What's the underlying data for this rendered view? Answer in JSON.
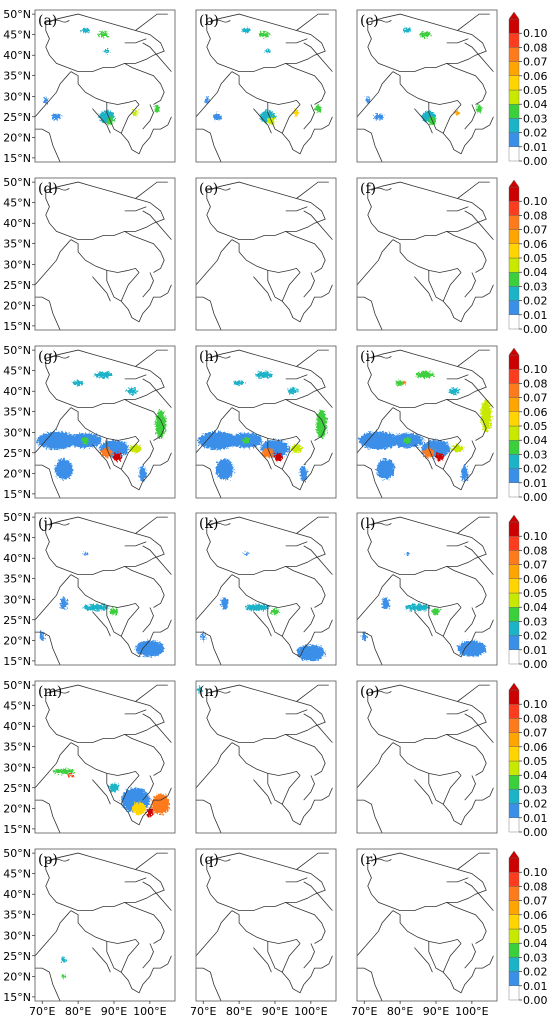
{
  "chart_data": {
    "type": "heatmap",
    "rows": 6,
    "cols": 3,
    "panel_labels": [
      "(a)",
      "(b)",
      "(c)",
      "(d)",
      "(e)",
      "(f)",
      "(g)",
      "(h)",
      "(i)",
      "(j)",
      "(k)",
      "(l)",
      "(m)",
      "(n)",
      "(o)",
      "(p)",
      "(q)",
      "(r)"
    ],
    "y_tick_labels": [
      "50°N",
      "45°N",
      "40°N",
      "35°N",
      "30°N",
      "25°N",
      "20°N",
      "15°N"
    ],
    "y_tick_values": [
      50,
      45,
      40,
      35,
      30,
      25,
      20,
      15
    ],
    "x_tick_labels": [
      "70°E",
      "80°E",
      "90°E",
      "100°E"
    ],
    "x_tick_values": [
      70,
      80,
      90,
      100
    ],
    "xlim": [
      68,
      107
    ],
    "ylim": [
      14,
      51
    ],
    "colorbar": {
      "levels": [
        0.0,
        0.01,
        0.02,
        0.03,
        0.04,
        0.05,
        0.06,
        0.07,
        0.08,
        0.09,
        0.1
      ],
      "tick_labels": [
        "0.00",
        "0.01",
        "0.02",
        "0.03",
        "0.04",
        "0.05",
        "0.06",
        "0.07",
        "0.08",
        "0.10"
      ],
      "tick_values": [
        0.0,
        0.01,
        0.02,
        0.03,
        0.04,
        0.05,
        0.06,
        0.07,
        0.08,
        0.1
      ],
      "colors": [
        "#ffffff",
        "#3a8fe8",
        "#1bb3c8",
        "#3ccf3c",
        "#c8e800",
        "#ffd400",
        "#ffa500",
        "#ff7a1a",
        "#ff3c1e",
        "#cc0000"
      ],
      "extend": "max"
    },
    "panels": [
      {
        "id": "a",
        "blobs": [
          [
            82,
            46,
            1.2,
            0.6,
            0.02
          ],
          [
            87,
            45,
            1.5,
            0.7,
            0.03
          ],
          [
            88,
            41,
            0.8,
            0.5,
            0.02
          ],
          [
            71,
            29,
            0.6,
            0.8,
            0.01
          ],
          [
            74,
            25,
            1.4,
            0.8,
            0.01
          ],
          [
            88,
            25,
            2.2,
            1.6,
            0.02
          ],
          [
            89,
            24,
            1.0,
            1.0,
            0.03
          ],
          [
            102,
            27,
            0.8,
            1.0,
            0.03
          ],
          [
            96,
            26,
            0.8,
            0.8,
            0.04
          ]
        ]
      },
      {
        "id": "b",
        "blobs": [
          [
            82,
            46,
            1.2,
            0.6,
            0.02
          ],
          [
            87,
            45,
            1.5,
            0.7,
            0.03
          ],
          [
            88,
            41,
            0.8,
            0.5,
            0.02
          ],
          [
            71,
            29,
            0.6,
            0.8,
            0.01
          ],
          [
            74,
            25,
            1.4,
            0.8,
            0.01
          ],
          [
            88,
            25,
            2.2,
            1.6,
            0.02
          ],
          [
            89,
            24,
            1.0,
            1.0,
            0.04
          ],
          [
            96,
            26,
            0.8,
            0.8,
            0.05
          ],
          [
            102,
            27,
            0.8,
            1.0,
            0.03
          ]
        ]
      },
      {
        "id": "c",
        "blobs": [
          [
            82,
            46,
            1.2,
            0.6,
            0.02
          ],
          [
            87,
            45,
            1.5,
            0.7,
            0.03
          ],
          [
            71,
            29,
            0.6,
            0.8,
            0.01
          ],
          [
            74,
            25,
            1.4,
            0.8,
            0.01
          ],
          [
            88,
            25,
            2.0,
            1.4,
            0.02
          ],
          [
            89,
            24,
            1.0,
            1.0,
            0.03
          ],
          [
            102,
            27,
            0.8,
            1.0,
            0.03
          ],
          [
            96,
            26,
            0.6,
            0.6,
            0.06
          ]
        ]
      },
      {
        "id": "d",
        "blobs": []
      },
      {
        "id": "e",
        "blobs": []
      },
      {
        "id": "f",
        "blobs": []
      },
      {
        "id": "g",
        "blobs": [
          [
            74,
            28,
            5.5,
            2.2,
            0.01
          ],
          [
            82,
            28,
            4.5,
            1.8,
            0.01
          ],
          [
            90,
            26,
            4.0,
            2.2,
            0.01
          ],
          [
            88,
            25,
            1.6,
            1.2,
            0.07
          ],
          [
            91,
            24,
            1.2,
            1.0,
            0.09
          ],
          [
            96,
            26,
            1.6,
            1.0,
            0.04
          ],
          [
            80,
            42,
            1.5,
            0.6,
            0.02
          ],
          [
            87,
            44,
            2.5,
            0.8,
            0.02
          ],
          [
            103,
            32,
            1.5,
            3.5,
            0.03
          ],
          [
            95,
            40,
            1.5,
            0.8,
            0.02
          ],
          [
            76,
            21,
            2.5,
            2.5,
            0.01
          ],
          [
            98,
            20,
            1.0,
            2.0,
            0.01
          ],
          [
            82,
            28,
            1.0,
            0.8,
            0.03
          ]
        ]
      },
      {
        "id": "h",
        "blobs": [
          [
            74,
            28,
            5.5,
            2.2,
            0.01
          ],
          [
            82,
            28,
            4.5,
            1.8,
            0.01
          ],
          [
            90,
            26,
            4.0,
            2.2,
            0.01
          ],
          [
            88,
            25,
            1.6,
            1.2,
            0.07
          ],
          [
            91,
            24,
            1.2,
            1.0,
            0.09
          ],
          [
            96,
            26,
            1.6,
            1.0,
            0.04
          ],
          [
            80,
            42,
            1.5,
            0.6,
            0.02
          ],
          [
            87,
            44,
            2.5,
            0.8,
            0.02
          ],
          [
            103,
            32,
            1.5,
            3.5,
            0.03
          ],
          [
            95,
            40,
            1.5,
            0.8,
            0.02
          ],
          [
            76,
            21,
            2.5,
            2.5,
            0.01
          ],
          [
            98,
            20,
            1.0,
            2.0,
            0.01
          ],
          [
            82,
            28,
            1.0,
            0.8,
            0.03
          ]
        ]
      },
      {
        "id": "i",
        "blobs": [
          [
            74,
            28,
            5.5,
            2.2,
            0.01
          ],
          [
            82,
            28,
            4.5,
            1.8,
            0.01
          ],
          [
            90,
            26,
            4.0,
            2.2,
            0.01
          ],
          [
            88,
            25,
            1.6,
            1.2,
            0.07
          ],
          [
            91,
            24,
            1.2,
            1.0,
            0.09
          ],
          [
            96,
            26,
            1.6,
            1.0,
            0.04
          ],
          [
            80,
            42,
            1.5,
            0.6,
            0.03
          ],
          [
            87,
            44,
            2.5,
            0.8,
            0.03
          ],
          [
            104,
            34,
            1.5,
            4.0,
            0.04
          ],
          [
            95,
            40,
            1.5,
            0.8,
            0.02
          ],
          [
            76,
            21,
            2.5,
            2.5,
            0.01
          ],
          [
            98,
            20,
            1.0,
            2.0,
            0.01
          ],
          [
            82,
            28,
            1.0,
            0.8,
            0.03
          ],
          [
            81,
            42,
            0.6,
            0.4,
            0.07
          ]
        ]
      },
      {
        "id": "j",
        "blobs": [
          [
            76,
            29,
            1.0,
            1.5,
            0.01
          ],
          [
            85,
            28,
            3.5,
            0.8,
            0.02
          ],
          [
            90,
            27,
            1.2,
            0.8,
            0.03
          ],
          [
            100,
            18,
            4.0,
            2.0,
            0.01
          ],
          [
            70,
            21,
            0.6,
            1.2,
            0.01
          ],
          [
            82,
            41,
            0.6,
            0.4,
            0.01
          ]
        ]
      },
      {
        "id": "k",
        "blobs": [
          [
            76,
            29,
            1.0,
            1.5,
            0.01
          ],
          [
            85,
            28,
            3.5,
            0.8,
            0.02
          ],
          [
            90,
            27,
            1.2,
            0.8,
            0.03
          ],
          [
            100,
            17,
            4.0,
            2.0,
            0.01
          ],
          [
            70,
            21,
            0.6,
            1.2,
            0.01
          ],
          [
            82,
            41,
            0.6,
            0.4,
            0.01
          ]
        ]
      },
      {
        "id": "l",
        "blobs": [
          [
            76,
            29,
            1.0,
            1.5,
            0.01
          ],
          [
            85,
            28,
            3.5,
            0.8,
            0.02
          ],
          [
            90,
            27,
            1.2,
            0.8,
            0.03
          ],
          [
            100,
            18,
            4.0,
            2.0,
            0.01
          ],
          [
            70,
            21,
            0.6,
            1.2,
            0.01
          ],
          [
            82,
            41,
            0.6,
            0.4,
            0.01
          ]
        ]
      },
      {
        "id": "m",
        "blobs": [
          [
            76,
            29,
            3.0,
            0.6,
            0.03
          ],
          [
            78,
            28,
            1.0,
            0.4,
            0.08
          ],
          [
            96,
            22,
            4.0,
            3.0,
            0.01
          ],
          [
            97,
            20,
            2.0,
            1.5,
            0.05
          ],
          [
            103,
            21,
            2.5,
            2.5,
            0.07
          ],
          [
            100,
            19,
            1.0,
            1.0,
            0.09
          ],
          [
            90,
            25,
            1.5,
            1.0,
            0.02
          ]
        ]
      },
      {
        "id": "n",
        "blobs": [
          [
            69,
            49,
            0.6,
            0.8,
            0.02
          ]
        ]
      },
      {
        "id": "o",
        "blobs": []
      },
      {
        "id": "p",
        "blobs": [
          [
            76,
            24,
            0.8,
            0.6,
            0.02
          ],
          [
            76,
            20,
            0.5,
            0.4,
            0.03
          ]
        ]
      },
      {
        "id": "q",
        "blobs": []
      },
      {
        "id": "r",
        "blobs": []
      }
    ]
  }
}
